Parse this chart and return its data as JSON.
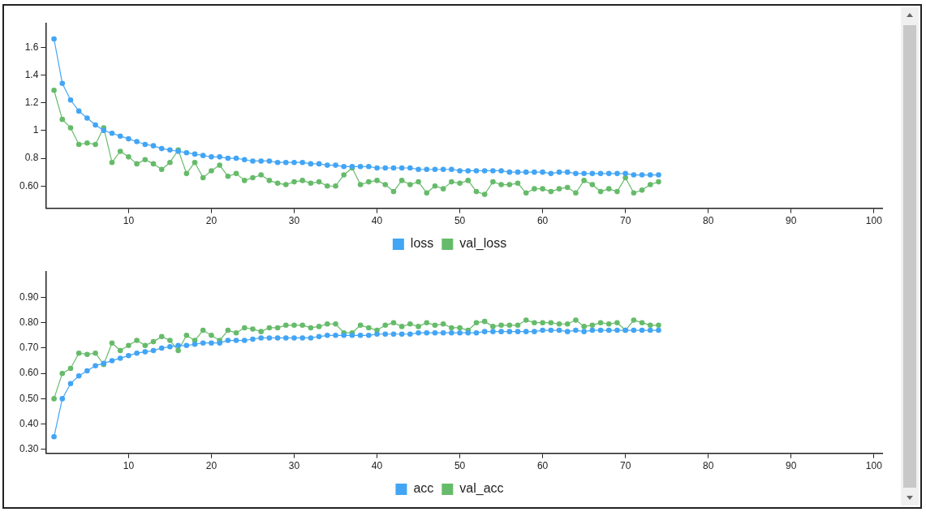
{
  "chart_data": [
    {
      "type": "line",
      "x": [
        1,
        2,
        3,
        4,
        5,
        6,
        7,
        8,
        9,
        10,
        11,
        12,
        13,
        14,
        15,
        16,
        17,
        18,
        19,
        20,
        21,
        22,
        23,
        24,
        25,
        26,
        27,
        28,
        29,
        30,
        31,
        32,
        33,
        34,
        35,
        36,
        37,
        38,
        39,
        40,
        41,
        42,
        43,
        44,
        45,
        46,
        47,
        48,
        49,
        50,
        51,
        52,
        53,
        54,
        55,
        56,
        57,
        58,
        59,
        60,
        61,
        62,
        63,
        64,
        65,
        66,
        67,
        68,
        69,
        70,
        71,
        72,
        73,
        74
      ],
      "series": [
        {
          "name": "loss",
          "color": "#42a5f5",
          "values": [
            1.66,
            1.34,
            1.22,
            1.14,
            1.09,
            1.04,
            1.0,
            0.98,
            0.96,
            0.94,
            0.92,
            0.9,
            0.89,
            0.87,
            0.86,
            0.85,
            0.84,
            0.83,
            0.82,
            0.81,
            0.81,
            0.8,
            0.8,
            0.79,
            0.78,
            0.78,
            0.78,
            0.77,
            0.77,
            0.77,
            0.77,
            0.76,
            0.76,
            0.75,
            0.75,
            0.74,
            0.74,
            0.74,
            0.74,
            0.73,
            0.73,
            0.73,
            0.73,
            0.73,
            0.72,
            0.72,
            0.72,
            0.72,
            0.72,
            0.71,
            0.71,
            0.71,
            0.71,
            0.71,
            0.71,
            0.7,
            0.7,
            0.7,
            0.7,
            0.7,
            0.69,
            0.7,
            0.7,
            0.69,
            0.69,
            0.69,
            0.69,
            0.69,
            0.69,
            0.69,
            0.68,
            0.68,
            0.68,
            0.68
          ]
        },
        {
          "name": "val_loss",
          "color": "#66bb6a",
          "values": [
            1.29,
            1.08,
            1.02,
            0.9,
            0.91,
            0.9,
            1.02,
            0.77,
            0.85,
            0.81,
            0.76,
            0.79,
            0.76,
            0.72,
            0.77,
            0.86,
            0.69,
            0.77,
            0.66,
            0.71,
            0.75,
            0.67,
            0.69,
            0.64,
            0.66,
            0.68,
            0.64,
            0.62,
            0.61,
            0.63,
            0.64,
            0.62,
            0.63,
            0.6,
            0.6,
            0.68,
            0.73,
            0.61,
            0.63,
            0.64,
            0.61,
            0.56,
            0.64,
            0.61,
            0.63,
            0.55,
            0.6,
            0.58,
            0.63,
            0.62,
            0.64,
            0.56,
            0.54,
            0.63,
            0.61,
            0.61,
            0.62,
            0.55,
            0.58,
            0.58,
            0.56,
            0.58,
            0.59,
            0.55,
            0.64,
            0.61,
            0.56,
            0.58,
            0.56,
            0.66,
            0.55,
            0.57,
            0.61,
            0.63
          ]
        }
      ],
      "xlim": [
        0,
        101
      ],
      "xticks": [
        10,
        20,
        30,
        40,
        50,
        60,
        70,
        80,
        90,
        100
      ],
      "ylim": [
        0.44,
        1.77
      ],
      "yticks": [
        {
          "value": 0.6,
          "label": "0.60"
        },
        0.8,
        1,
        1.2,
        1.4,
        1.6
      ],
      "legend": "bottom",
      "marker": "circle",
      "line_style": "solid",
      "grid": false
    },
    {
      "type": "line",
      "x": [
        1,
        2,
        3,
        4,
        5,
        6,
        7,
        8,
        9,
        10,
        11,
        12,
        13,
        14,
        15,
        16,
        17,
        18,
        19,
        20,
        21,
        22,
        23,
        24,
        25,
        26,
        27,
        28,
        29,
        30,
        31,
        32,
        33,
        34,
        35,
        36,
        37,
        38,
        39,
        40,
        41,
        42,
        43,
        44,
        45,
        46,
        47,
        48,
        49,
        50,
        51,
        52,
        53,
        54,
        55,
        56,
        57,
        58,
        59,
        60,
        61,
        62,
        63,
        64,
        65,
        66,
        67,
        68,
        69,
        70,
        71,
        72,
        73,
        74
      ],
      "series": [
        {
          "name": "acc",
          "color": "#42a5f5",
          "values": [
            0.35,
            0.5,
            0.56,
            0.59,
            0.61,
            0.63,
            0.64,
            0.65,
            0.66,
            0.67,
            0.68,
            0.685,
            0.69,
            0.7,
            0.705,
            0.71,
            0.71,
            0.715,
            0.72,
            0.72,
            0.72,
            0.73,
            0.73,
            0.73,
            0.735,
            0.74,
            0.74,
            0.74,
            0.74,
            0.74,
            0.74,
            0.74,
            0.745,
            0.75,
            0.75,
            0.75,
            0.75,
            0.75,
            0.75,
            0.755,
            0.755,
            0.755,
            0.755,
            0.755,
            0.76,
            0.76,
            0.76,
            0.76,
            0.76,
            0.76,
            0.76,
            0.76,
            0.765,
            0.765,
            0.765,
            0.765,
            0.765,
            0.765,
            0.765,
            0.77,
            0.77,
            0.77,
            0.765,
            0.77,
            0.765,
            0.77,
            0.77,
            0.77,
            0.77,
            0.77,
            0.77,
            0.77,
            0.77,
            0.77
          ]
        },
        {
          "name": "val_acc",
          "color": "#66bb6a",
          "values": [
            0.5,
            0.6,
            0.62,
            0.68,
            0.675,
            0.68,
            0.635,
            0.72,
            0.69,
            0.71,
            0.73,
            0.71,
            0.725,
            0.745,
            0.73,
            0.69,
            0.75,
            0.73,
            0.77,
            0.75,
            0.73,
            0.77,
            0.76,
            0.78,
            0.775,
            0.765,
            0.78,
            0.78,
            0.79,
            0.79,
            0.79,
            0.78,
            0.785,
            0.795,
            0.795,
            0.76,
            0.76,
            0.79,
            0.78,
            0.77,
            0.79,
            0.8,
            0.785,
            0.795,
            0.785,
            0.8,
            0.79,
            0.795,
            0.78,
            0.78,
            0.77,
            0.8,
            0.805,
            0.785,
            0.79,
            0.79,
            0.79,
            0.81,
            0.8,
            0.8,
            0.8,
            0.795,
            0.795,
            0.81,
            0.785,
            0.79,
            0.8,
            0.795,
            0.8,
            0.77,
            0.81,
            0.8,
            0.79,
            0.79
          ]
        }
      ],
      "xlim": [
        0,
        101
      ],
      "xticks": [
        10,
        20,
        30,
        40,
        50,
        60,
        70,
        80,
        90,
        100
      ],
      "ylim": [
        0.285,
        1.0
      ],
      "yticks": [
        {
          "value": 0.3,
          "label": "0.30"
        },
        {
          "value": 0.4,
          "label": "0.40"
        },
        {
          "value": 0.5,
          "label": "0.50"
        },
        {
          "value": 0.6,
          "label": "0.60"
        },
        {
          "value": 0.7,
          "label": "0.70"
        },
        {
          "value": 0.8,
          "label": "0.80"
        },
        {
          "value": 0.9,
          "label": "0.90"
        }
      ],
      "legend": "bottom",
      "marker": "circle",
      "line_style": "solid",
      "grid": false
    }
  ]
}
